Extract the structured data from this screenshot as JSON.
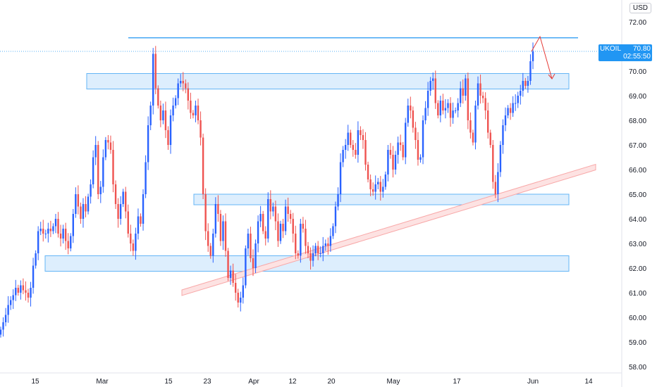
{
  "currency": "USD",
  "price_tag": {
    "symbol": "UKOIL",
    "price": "70.80",
    "countdown": "02:55:50"
  },
  "colors": {
    "up": "#2962ff",
    "down": "#ef5350",
    "zone_fill": "#bbdefb",
    "zone_stroke": "#64b5f6",
    "resistance": "#2196f3",
    "trend": "#f8a8a8",
    "arrow": "#e53935",
    "text": "#131722"
  },
  "chart_data": {
    "type": "candlestick",
    "symbol": "UKOIL",
    "currency": "USD",
    "y_ticks": [
      "72.00",
      "71.00",
      "70.00",
      "69.00",
      "68.00",
      "67.00",
      "66.00",
      "65.00",
      "64.00",
      "63.00",
      "62.00",
      "61.00",
      "60.00",
      "59.00",
      "58.00"
    ],
    "x_ticks": [
      "15",
      "Mar",
      "15",
      "23",
      "Apr",
      "12",
      "20",
      "May",
      "17",
      "Jun",
      "14"
    ],
    "ylim": [
      57.7,
      72.2
    ],
    "last_price": 70.8,
    "zones": [
      {
        "from": 69.5,
        "to": 69.9
      },
      {
        "from": 64.8,
        "to": 65.0
      },
      {
        "from": 62.1,
        "to": 62.5
      }
    ],
    "resistance_line": 71.35,
    "trendline": {
      "start": 61.0,
      "end": 66.1
    },
    "closes": [
      59.5,
      59.8,
      60.1,
      60.5,
      60.7,
      60.9,
      61.2,
      61.0,
      61.3,
      61.1,
      61.0,
      60.8,
      61.2,
      62.1,
      62.6,
      63.5,
      63.6,
      63.4,
      63.4,
      63.6,
      63.5,
      63.7,
      64.0,
      63.4,
      63.2,
      63.6,
      63.1,
      62.8,
      63.3,
      64.2,
      65.0,
      64.5,
      64.0,
      64.6,
      64.3,
      64.9,
      65.4,
      66.5,
      67.0,
      65.0,
      65.3,
      66.5,
      67.2,
      67.1,
      66.8,
      65.4,
      64.6,
      64.0,
      64.6,
      65.1,
      64.3,
      63.4,
      63.0,
      62.7,
      63.4,
      64.1,
      63.8,
      65.0,
      66.3,
      67.8,
      68.6,
      70.7,
      69.3,
      68.6,
      68.0,
      68.4,
      67.6,
      67.0,
      68.2,
      68.6,
      68.9,
      69.5,
      69.6,
      69.5,
      69.3,
      68.8,
      68.3,
      68.2,
      68.6,
      68.0,
      67.3,
      65.0,
      63.5,
      62.9,
      62.5,
      63.4,
      64.6,
      64.2,
      63.1,
      63.9,
      62.7,
      61.6,
      61.9,
      61.4,
      61.0,
      60.6,
      60.8,
      61.3,
      62.8,
      63.4,
      62.4,
      62.0,
      63.0,
      63.9,
      64.2,
      63.5,
      63.2,
      64.8,
      64.3,
      64.5,
      63.9,
      63.1,
      63.8,
      63.5,
      64.5,
      64.2,
      64.0,
      63.4,
      62.6,
      62.5,
      63.8,
      63.6,
      62.9,
      62.6,
      62.3,
      62.6,
      62.9,
      62.6,
      62.6,
      62.9,
      63.0,
      62.9,
      63.3,
      63.7,
      64.5,
      65.0,
      66.3,
      66.8,
      67.0,
      67.5,
      67.0,
      66.8,
      66.6,
      67.6,
      67.4,
      67.2,
      66.2,
      65.6,
      65.2,
      65.1,
      65.4,
      65.5,
      65.1,
      65.3,
      65.8,
      66.8,
      66.6,
      66.0,
      66.6,
      67.1,
      67.0,
      66.5,
      67.9,
      68.6,
      68.4,
      67.7,
      67.2,
      66.4,
      66.5,
      68.0,
      68.5,
      69.2,
      69.6,
      69.7,
      68.7,
      68.2,
      68.8,
      68.4,
      68.5,
      68.7,
      68.1,
      68.4,
      68.4,
      68.7,
      69.3,
      69.0,
      69.7,
      68.0,
      67.5,
      67.1,
      68.6,
      69.5,
      69.0,
      68.9,
      68.4,
      67.5,
      67.0,
      65.5,
      65.0,
      65.9,
      67.0,
      67.8,
      68.2,
      68.5,
      68.3,
      68.7,
      68.7,
      69.0,
      69.2,
      69.6,
      69.4,
      69.6,
      70.4,
      70.8
    ]
  }
}
